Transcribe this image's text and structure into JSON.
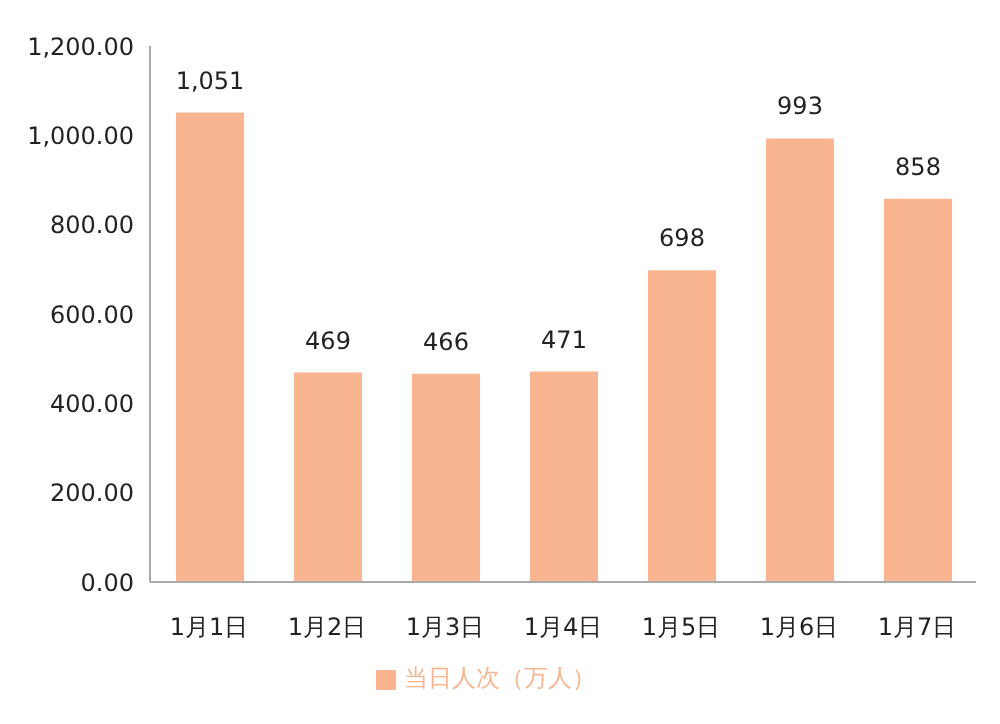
{
  "chart_data": {
    "type": "bar",
    "categories": [
      "1月1日",
      "1月2日",
      "1月3日",
      "1月4日",
      "1月5日",
      "1月6日",
      "1月7日"
    ],
    "series": [
      {
        "name": "当日人次（万人）",
        "color": "#f8b590",
        "values": [
          1051,
          469,
          466,
          471,
          698,
          993,
          858
        ],
        "value_labels": [
          "1,051",
          "469",
          "466",
          "471",
          "698",
          "993",
          "858"
        ]
      }
    ],
    "ylim": [
      0,
      1200
    ],
    "yticks": [
      {
        "value": 0,
        "label": "0.00"
      },
      {
        "value": 200,
        "label": "200.00"
      },
      {
        "value": 400,
        "label": "400.00"
      },
      {
        "value": 600,
        "label": "600.00"
      },
      {
        "value": 800,
        "label": "800.00"
      },
      {
        "value": 1000,
        "label": "1,000.00"
      },
      {
        "value": 1200,
        "label": "1,200.00"
      }
    ],
    "grid": false,
    "legend": "bottom"
  }
}
